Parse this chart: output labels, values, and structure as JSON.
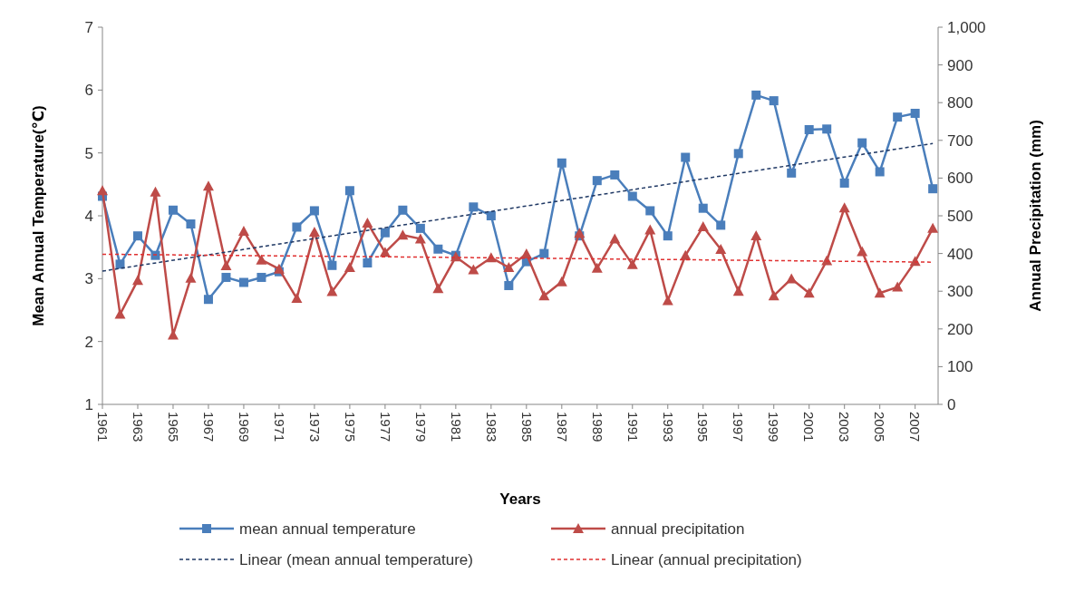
{
  "chart_data": {
    "type": "line",
    "xlabel": "Years",
    "ylabel": "Mean Annual Temperature(℃)",
    "y2label": "Annual Precipitation (mm)",
    "x": [
      1961,
      1962,
      1963,
      1964,
      1965,
      1966,
      1967,
      1968,
      1969,
      1970,
      1971,
      1972,
      1973,
      1974,
      1975,
      1976,
      1977,
      1978,
      1979,
      1980,
      1981,
      1982,
      1983,
      1984,
      1985,
      1986,
      1987,
      1988,
      1989,
      1990,
      1991,
      1992,
      1993,
      1994,
      1995,
      1996,
      1997,
      1998,
      1999,
      2000,
      2001,
      2002,
      2003,
      2004,
      2005,
      2006,
      2007,
      2008
    ],
    "xlim": [
      1961,
      2008.3
    ],
    "xticks": [
      1961,
      1963,
      1965,
      1967,
      1969,
      1971,
      1973,
      1975,
      1977,
      1979,
      1981,
      1983,
      1985,
      1987,
      1989,
      1991,
      1993,
      1995,
      1997,
      1999,
      2001,
      2003,
      2005,
      2007
    ],
    "ylim": [
      1,
      7
    ],
    "yticks": [
      1,
      2,
      3,
      4,
      5,
      6,
      7
    ],
    "y2lim": [
      0,
      1000
    ],
    "y2ticks": [
      0,
      100,
      200,
      300,
      400,
      500,
      600,
      700,
      800,
      900,
      {
        "value": 1000,
        "label": "1,000"
      }
    ],
    "grid": false,
    "legend": "bottom",
    "series": [
      {
        "name": "mean annual temperature",
        "color": "#4a7ebb",
        "marker": "square",
        "values": [
          4.31,
          3.23,
          3.68,
          3.37,
          4.09,
          3.87,
          2.67,
          3.02,
          2.94,
          3.02,
          3.11,
          3.82,
          4.08,
          3.21,
          4.4,
          3.25,
          3.73,
          4.09,
          3.8,
          3.47,
          3.37,
          4.14,
          4.0,
          2.89,
          3.27,
          3.4,
          4.84,
          3.68,
          4.56,
          4.65,
          4.31,
          4.08,
          3.68,
          4.93,
          4.12,
          3.85,
          4.99,
          5.92,
          5.83,
          4.68,
          5.37,
          5.38,
          4.52,
          5.16,
          4.7,
          5.57,
          5.63,
          4.43
        ]
      },
      {
        "name": "annual precipitation",
        "color": "#be4b48",
        "marker": "triangle",
        "axis": "y2",
        "values": [
          567,
          239,
          329,
          563,
          184,
          335,
          579,
          368,
          459,
          383,
          359,
          281,
          457,
          299,
          363,
          481,
          403,
          449,
          439,
          307,
          391,
          357,
          389,
          363,
          399,
          288,
          325,
          454,
          361,
          439,
          371,
          463,
          275,
          395,
          471,
          411,
          300,
          447,
          288,
          333,
          295,
          381,
          521,
          405,
          295,
          311,
          379,
          467
        ]
      },
      {
        "name": "Linear (mean annual temperature)",
        "color": "#1f3864",
        "marker": "none",
        "line_style": "dashed",
        "x": [
          1961,
          1980,
          2008
        ],
        "values": [
          3.12,
          3.94,
          5.15
        ]
      },
      {
        "name": "Linear (annual precipitation)",
        "color": "#e03030",
        "marker": "none",
        "line_style": "dashed",
        "axis": "y2",
        "x": [
          1961,
          1980,
          2008
        ],
        "values": [
          398,
          390,
          377
        ]
      }
    ]
  }
}
